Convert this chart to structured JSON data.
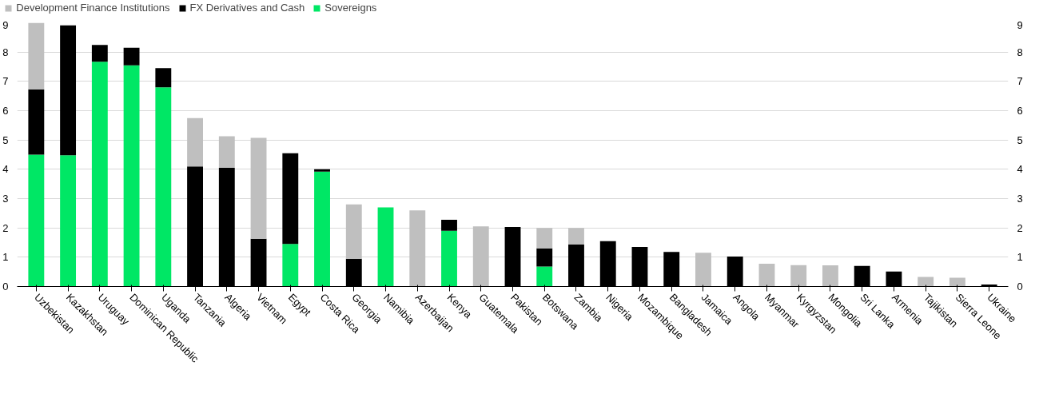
{
  "chart_data": {
    "type": "bar",
    "stacked": true,
    "categories": [
      "Uzbekistan",
      "Kazakhstan",
      "Uruguay",
      "Dominican Republic",
      "Uganda",
      "Tanzania",
      "Algeria",
      "Vietnam",
      "Egypt",
      "Costa Rica",
      "Georgia",
      "Namibia",
      "Azerbaijan",
      "Kenya",
      "Guatemala",
      "Pakistan",
      "Botswana",
      "Zambia",
      "Nigeria",
      "Mozambique",
      "Bangladesh",
      "Jamaica",
      "Angola",
      "Myanmar",
      "Kyrgyzstan",
      "Mongolia",
      "Sri Lanka",
      "Armenia",
      "Tajikistan",
      "Sierra Leone",
      "Ukraine"
    ],
    "series": [
      {
        "name": "Sovereigns",
        "color": "#00e765",
        "values": [
          4.5,
          4.48,
          7.67,
          7.55,
          6.8,
          0,
          0,
          0,
          1.45,
          3.92,
          0,
          2.7,
          0,
          1.9,
          0,
          0,
          0.68,
          0,
          0,
          0,
          0,
          0,
          0,
          0,
          0,
          0,
          0,
          0,
          0,
          0,
          0
        ]
      },
      {
        "name": "FX Derivatives and Cash",
        "color": "#000000",
        "values": [
          2.23,
          4.43,
          0.57,
          0.6,
          0.65,
          4.1,
          4.05,
          1.63,
          3.1,
          0.08,
          0.95,
          0,
          0,
          0.38,
          0,
          2.03,
          0.62,
          1.43,
          1.55,
          1.35,
          1.18,
          0,
          1.02,
          0,
          0,
          0,
          0.7,
          0.51,
          0,
          0,
          0.07
        ]
      },
      {
        "name": "Development Finance Institutions",
        "color": "#bfbfbf",
        "values": [
          2.27,
          0,
          0,
          0,
          0,
          1.65,
          1.08,
          3.44,
          0,
          0,
          1.85,
          0,
          2.6,
          0,
          2.05,
          0,
          0.7,
          0.57,
          0,
          0,
          0,
          1.15,
          0,
          0.78,
          0.73,
          0.72,
          0,
          0,
          0.33,
          0.3,
          0
        ]
      }
    ],
    "ylim": [
      0,
      9
    ],
    "yticks": [
      0,
      1,
      2,
      3,
      4,
      5,
      6,
      7,
      8,
      9
    ],
    "y2lim": [
      0,
      9
    ],
    "y2ticks": [
      0,
      1,
      2,
      3,
      4,
      5,
      6,
      7,
      8,
      9
    ],
    "grid": "y",
    "legend": "top left"
  }
}
